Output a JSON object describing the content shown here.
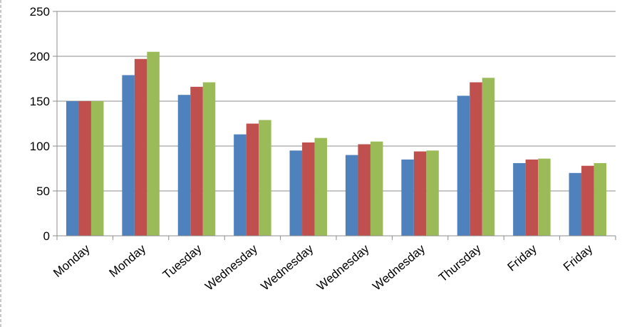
{
  "chart_data": {
    "type": "bar",
    "title": "",
    "xlabel": "",
    "ylabel": "",
    "ylim": [
      0,
      250
    ],
    "yticks": [
      0,
      50,
      100,
      150,
      200,
      250
    ],
    "grid": true,
    "legend": "none",
    "categories": [
      "Monday",
      "Monday",
      "Tuesday",
      "Wednesday",
      "Wednesday",
      "Wednesday",
      "Wednesday",
      "Thursday",
      "Friday",
      "Friday"
    ],
    "series": [
      {
        "color": "#4f81bd",
        "values": [
          150,
          179,
          157,
          113,
          95,
          90,
          85,
          156,
          81,
          70
        ]
      },
      {
        "color": "#c0504d",
        "values": [
          150,
          197,
          166,
          125,
          104,
          102,
          94,
          171,
          85,
          78
        ]
      },
      {
        "color": "#9bbb59",
        "values": [
          150,
          205,
          171,
          129,
          109,
          105,
          95,
          176,
          86,
          81
        ]
      }
    ]
  }
}
